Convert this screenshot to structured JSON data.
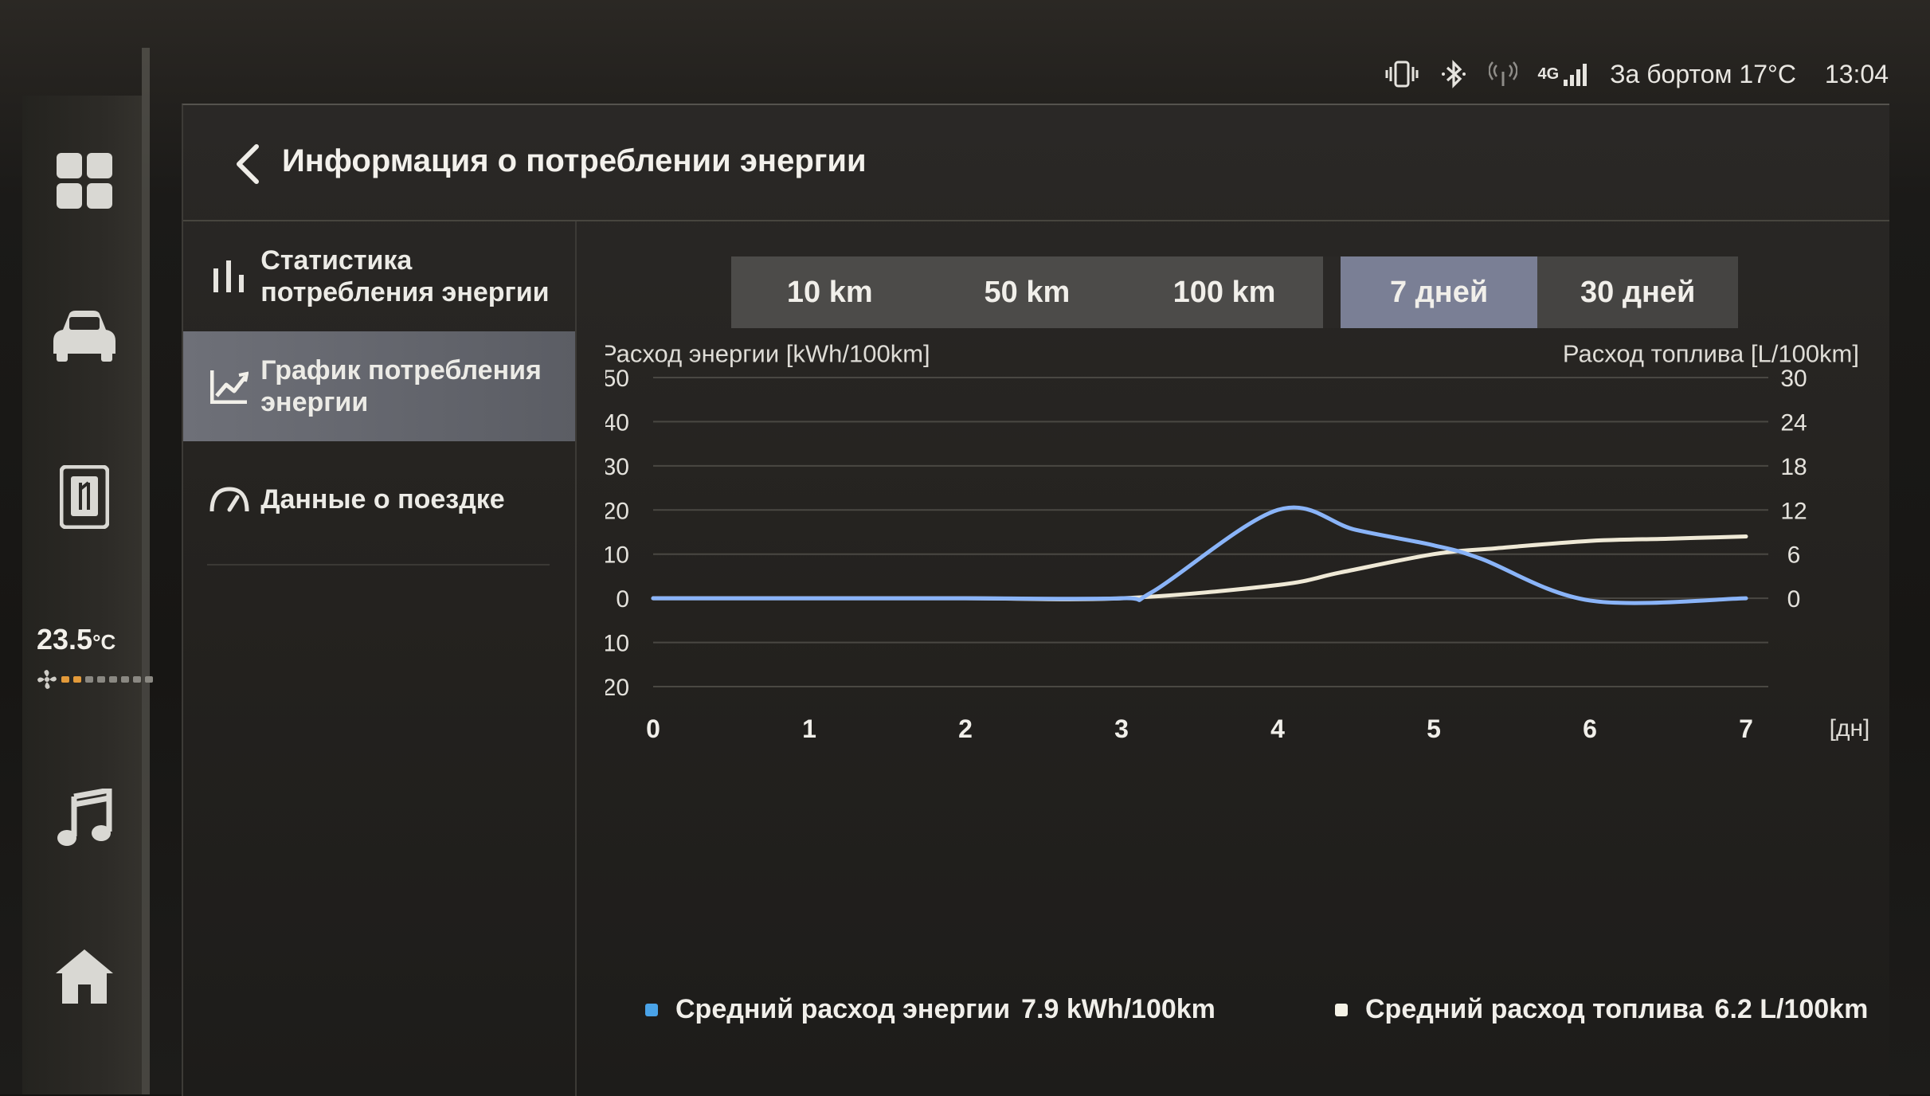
{
  "status": {
    "outside_label": "За бортом",
    "outside_temp": "17°C",
    "time": "13:04",
    "network": "4G",
    "icons": [
      "phone-vibrate-icon",
      "bluetooth-icon",
      "wireless-icon",
      "signal-icon"
    ]
  },
  "dock": {
    "items": [
      "apps-grid-icon",
      "car-icon",
      "sim-card-icon",
      "music-icon",
      "home-icon"
    ],
    "temperature": "23.5",
    "temperature_unit": "°C",
    "fan_level": 2,
    "fan_levels": 8
  },
  "header": {
    "title": "Информация о потреблении энергии"
  },
  "sidebar": {
    "items": [
      {
        "label": "Статистика потребления энергии",
        "icon": "bar-stats-icon",
        "active": false
      },
      {
        "label": "График потребления энергии",
        "icon": "trend-chart-icon",
        "active": true
      },
      {
        "label": "Данные о поездке",
        "icon": "speedometer-icon",
        "active": false
      }
    ]
  },
  "tabs": [
    {
      "label": "10 km",
      "active": false
    },
    {
      "label": "50 km",
      "active": false
    },
    {
      "label": "100 km",
      "active": false
    },
    {
      "label": "7 дней",
      "active": true
    },
    {
      "label": "30 дней",
      "active": false
    }
  ],
  "colors": {
    "energy": "#8ab4f8",
    "fuel": "#efe9d6",
    "active_tab": "#7a7f95"
  },
  "chart_data": {
    "type": "line",
    "ylabel": "Расход энергии [kWh/100km]",
    "y2label": "Расход топлива [L/100km]",
    "xunit": "[дн]",
    "x": [
      0,
      1,
      2,
      3,
      4,
      5,
      6,
      7
    ],
    "ylim": [
      -20,
      50
    ],
    "y2lim": [
      -12,
      30
    ],
    "yticks": [
      50,
      40,
      30,
      20,
      10,
      0,
      -10,
      -20
    ],
    "y2ticks": [
      30,
      24,
      18,
      12,
      6,
      0
    ],
    "grid": true,
    "series": [
      {
        "name": "Средний расход энергии",
        "axis": "left",
        "x": [
          0,
          1,
          2,
          3,
          3.2,
          4,
          4.5,
          5,
          5.3,
          6,
          7
        ],
        "values": [
          0,
          0,
          0,
          0,
          1.5,
          20,
          15.5,
          12,
          9,
          -0.5,
          0
        ]
      },
      {
        "name": "Средний расход топлива",
        "axis": "right",
        "x": [
          0,
          1,
          2,
          3,
          4,
          4.4,
          5,
          5.4,
          6,
          6.5,
          7
        ],
        "values": [
          0,
          0,
          0,
          0,
          1.8,
          3.5,
          6,
          6.8,
          7.8,
          8.1,
          8.4
        ]
      }
    ],
    "legend": [
      {
        "name": "Средний расход энергии",
        "value": "7.9 kWh/100km"
      },
      {
        "name": "Средний расход топлива",
        "value": "6.2 L/100km"
      }
    ]
  }
}
